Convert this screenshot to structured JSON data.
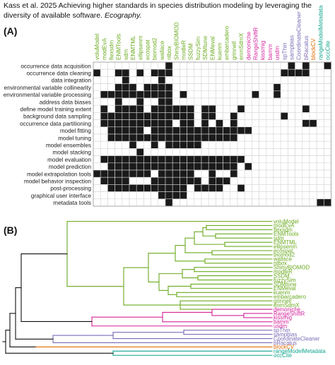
{
  "citation": {
    "text": "Kass et al. 2025 Achieving higher standards in species distribution modeling by leveraging the diversity of available software.",
    "journal": "Ecography."
  },
  "panel_a": {
    "label": "(A)",
    "chart_data": {
      "type": "heatmap",
      "columns": [
        {
          "name": "voluModel",
          "group": "green"
        },
        {
          "name": "modEvA",
          "group": "green"
        },
        {
          "name": "flexsdm",
          "group": "green"
        },
        {
          "name": "ENMTools",
          "group": "green"
        },
        {
          "name": "sdm",
          "group": "green"
        },
        {
          "name": "ENMTML",
          "group": "green"
        },
        {
          "name": "ellipsenm",
          "group": "green"
        },
        {
          "name": "ecospat",
          "group": "green"
        },
        {
          "name": "biomod2",
          "group": "green"
        },
        {
          "name": "wallace",
          "group": "green"
        },
        {
          "name": "ntbox",
          "group": "green"
        },
        {
          "name": "ShinyBIOMOD",
          "group": "green"
        },
        {
          "name": "modleR",
          "group": "green"
        },
        {
          "name": "SSDM",
          "group": "green"
        },
        {
          "name": "fuzzySim",
          "group": "green"
        },
        {
          "name": "SDMtune",
          "group": "green"
        },
        {
          "name": "ENMeval",
          "group": "green"
        },
        {
          "name": "kuenm",
          "group": "green"
        },
        {
          "name": "embarcadero",
          "group": "green"
        },
        {
          "name": "grinnell",
          "group": "green"
        },
        {
          "name": "enmSdmX",
          "group": "green"
        },
        {
          "name": "demoniche",
          "group": "magenta"
        },
        {
          "name": "RangeShiftR",
          "group": "magenta"
        },
        {
          "name": "kissmig",
          "group": "magenta"
        },
        {
          "name": "bamm",
          "group": "magenta"
        },
        {
          "name": "usdm",
          "group": "magenta"
        },
        {
          "name": "spThin",
          "group": "purple"
        },
        {
          "name": "sampbias",
          "group": "purple"
        },
        {
          "name": "CoordinateCleaner",
          "group": "purple"
        },
        {
          "name": "bRacatus",
          "group": "purple"
        },
        {
          "name": "blockCV",
          "group": "orange"
        },
        {
          "name": "rangeModelMetadata",
          "group": "teal"
        },
        {
          "name": "occCite",
          "group": "teal"
        }
      ],
      "rows": [
        "occurrence data acquisition",
        "occurrence data cleaning",
        "data integration",
        "environmental variable collinearity",
        "environmental variable processing",
        "address data biases",
        "define model training extent",
        "background data sampling",
        "occurrence data partitioning",
        "model fitting",
        "model tuning",
        "model ensembles",
        "model stacking",
        "model evaluation",
        "model prediction",
        "model extrapolation tools",
        "model behavior inspection",
        "post-processing",
        "graphical user interface",
        "metadata tools"
      ],
      "matrix": [
        "000000000010000000000000000101001",
        "100110101110000000000000001111000",
        "000010000100000000000000000000000",
        "000111011110000000000000010000000",
        "011111111110100000000010010000000",
        "000100100110000000000000000000000",
        "010111101111110110001000000001000",
        "011111111111110110010000001000000",
        "011111111110110101010000000001100",
        "001111101111111111111100000000000",
        "001111111111111111110000000000000",
        "000001001011111000000000000000000",
        "000000100000000000000000000000000",
        "011111111111111111111000000000000",
        "001111111111111111110100000000000",
        "111111110111110010010000000000000",
        "011110001111111011100000000000000",
        "001111111111101111001000000000000",
        "000000000111100000000000000000000",
        "000000000010000000000000000000011"
      ]
    }
  },
  "panel_b": {
    "label": "(B)",
    "tips": [
      {
        "name": "voluModel",
        "group": "green"
      },
      {
        "name": "modEvA",
        "group": "green"
      },
      {
        "name": "flexsdm",
        "group": "green"
      },
      {
        "name": "ENMTools",
        "group": "green"
      },
      {
        "name": "sdm",
        "group": "green"
      },
      {
        "name": "ENMTML",
        "group": "green"
      },
      {
        "name": "ellipsenm",
        "group": "green"
      },
      {
        "name": "ecospat",
        "group": "green"
      },
      {
        "name": "biomod2",
        "group": "green"
      },
      {
        "name": "wallace",
        "group": "green"
      },
      {
        "name": "ntbox",
        "group": "green"
      },
      {
        "name": "ShinyBIOMOD",
        "group": "green"
      },
      {
        "name": "modleR",
        "group": "green"
      },
      {
        "name": "SSDM",
        "group": "green"
      },
      {
        "name": "fuzzySim",
        "group": "green"
      },
      {
        "name": "SDMtune",
        "group": "green"
      },
      {
        "name": "ENMeval",
        "group": "green"
      },
      {
        "name": "kuenm",
        "group": "green"
      },
      {
        "name": "embarcadero",
        "group": "green"
      },
      {
        "name": "grinnell",
        "group": "green"
      },
      {
        "name": "enmSdmX",
        "group": "green"
      },
      {
        "name": "demoniche",
        "group": "magenta"
      },
      {
        "name": "RangeShiftR",
        "group": "magenta"
      },
      {
        "name": "kissmig",
        "group": "magenta"
      },
      {
        "name": "bamm",
        "group": "magenta"
      },
      {
        "name": "usdm",
        "group": "magenta"
      },
      {
        "name": "spThin",
        "group": "purple"
      },
      {
        "name": "sampbias",
        "group": "purple"
      },
      {
        "name": "CoordinateCleaner",
        "group": "purple"
      },
      {
        "name": "bRacatus",
        "group": "purple"
      },
      {
        "name": "blockCV",
        "group": "orange"
      },
      {
        "name": "rangeModelMetadata",
        "group": "teal"
      },
      {
        "name": "occCite",
        "group": "teal"
      }
    ]
  },
  "colors": {
    "green": "#6aaa1e",
    "magenta": "#d6239b",
    "purple": "#7b6bb5",
    "orange": "#e06b00",
    "teal": "#10a58c",
    "cell_on": "#1a1a1a",
    "cell_off": "#ffffff",
    "grid": "#d4d4d4",
    "root": "#111111"
  }
}
